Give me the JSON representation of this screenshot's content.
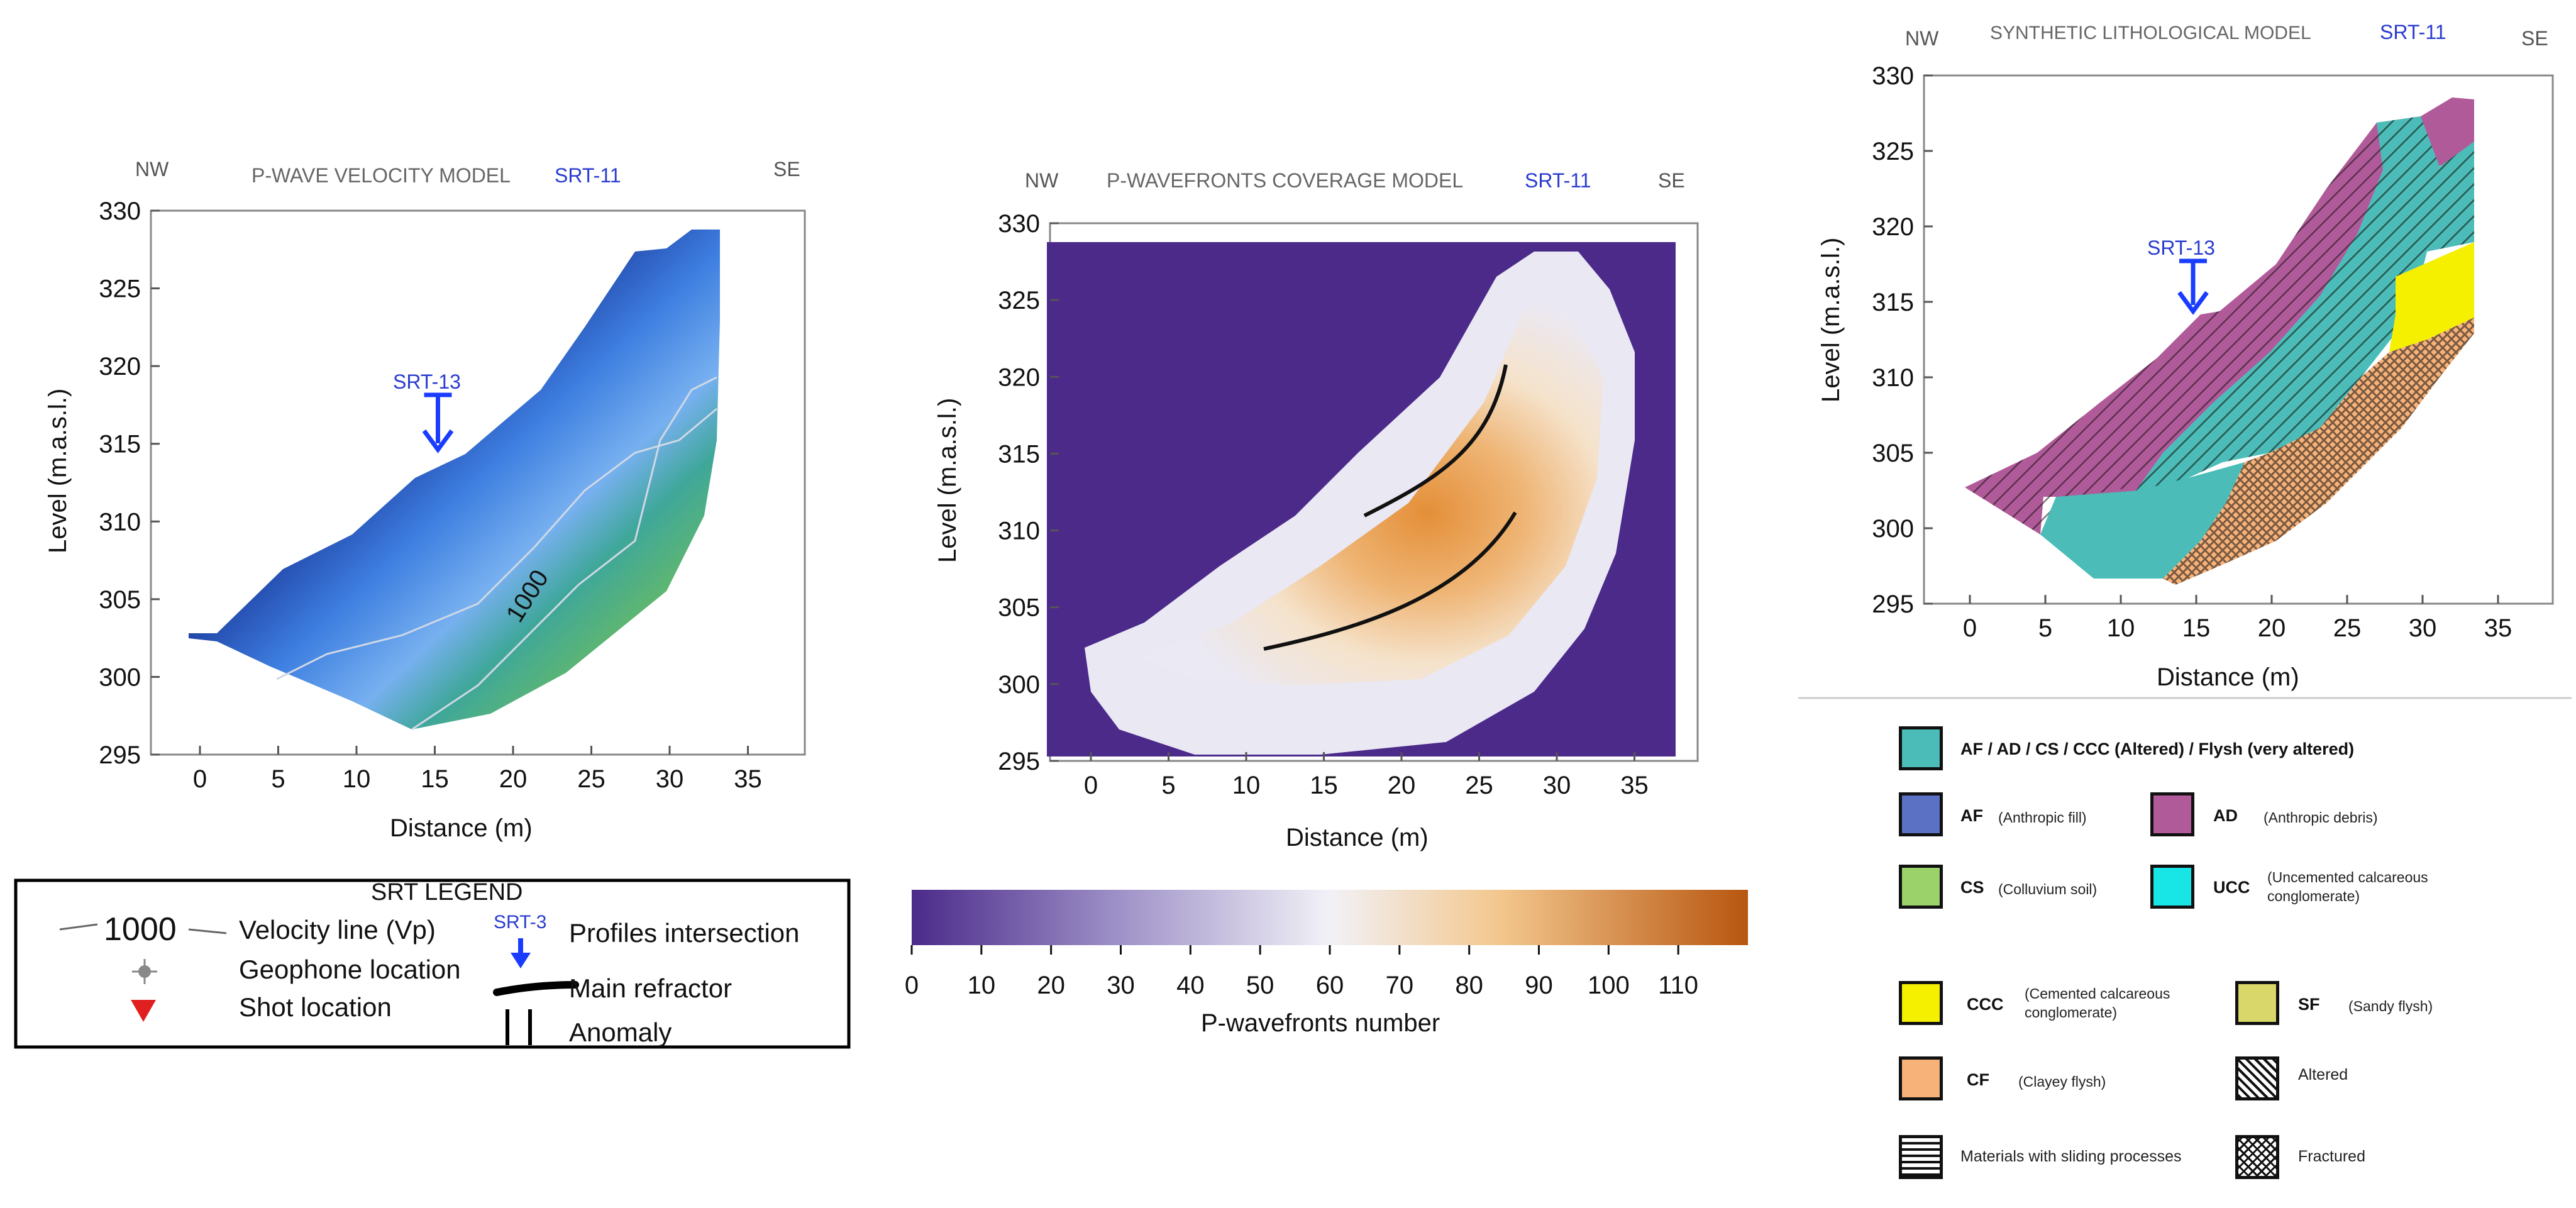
{
  "vp_model": {
    "title": "P-WAVE VELOCITY MODEL",
    "profile": "SRT-11",
    "left_dir": "NW",
    "right_dir": "SE",
    "intersection_label": "SRT-13",
    "contour_label": "1000",
    "ylabel": "Level (m.a.s.l.)",
    "xlabel": "Distance (m)",
    "x_ticks": [
      "0",
      "5",
      "10",
      "15",
      "20",
      "25",
      "30",
      "35"
    ],
    "y_ticks": [
      "330",
      "325",
      "320",
      "315",
      "310",
      "305",
      "300",
      "295"
    ],
    "intersection_x": 15,
    "colors": {
      "low": "#0a1a6e",
      "mid": "#4f8fe8",
      "high": "#a8d24a",
      "contour": "#cfd8e6"
    }
  },
  "coverage_model": {
    "title": "P-WAVEFRONTS COVERAGE MODEL",
    "profile": "SRT-11",
    "left_dir": "NW",
    "right_dir": "SE",
    "ylabel": "Level (m.a.s.l.)",
    "xlabel": "Distance (m)",
    "x_ticks": [
      "0",
      "5",
      "10",
      "15",
      "20",
      "25",
      "30",
      "35"
    ],
    "y_ticks": [
      "330",
      "325",
      "320",
      "315",
      "310",
      "305",
      "300",
      "295"
    ],
    "colorbar": {
      "ticks": [
        "0",
        "10",
        "20",
        "30",
        "40",
        "50",
        "60",
        "70",
        "80",
        "90",
        "100",
        "110"
      ],
      "label": "P-wavefronts number",
      "min": 0,
      "max": 120
    },
    "colors": {
      "background": "#4b2a8a",
      "white": "#f4f3f8",
      "orange": "#e8953a"
    }
  },
  "litho_model": {
    "title": "SYNTHETIC LITHOLOGICAL MODEL",
    "profile": "SRT-11",
    "left_dir": "NW",
    "right_dir": "SE",
    "intersection_label": "SRT-13",
    "ylabel": "Level (m.a.s.l.)",
    "xlabel": "Distance (m)",
    "x_ticks": [
      "0",
      "5",
      "10",
      "15",
      "20",
      "25",
      "30",
      "35"
    ],
    "y_ticks": [
      "330",
      "325",
      "320",
      "315",
      "310",
      "305",
      "300",
      "295"
    ],
    "intersection_x": 15
  },
  "srt_legend": {
    "title": "SRT LEGEND",
    "velocity_value": "1000",
    "velocity_label": "Velocity line (Vp)",
    "geophone_label": "Geophone location",
    "shot_label": "Shot location",
    "intersection_tag": "SRT-3",
    "intersection_label": "Profiles intersection",
    "refractor_label": "Main refractor",
    "anomaly_label": "Anomaly"
  },
  "litho_legend": {
    "main_label": "AF / AD / CS / CCC (Altered) / Flysh (very altered)",
    "items": [
      {
        "code": "AF",
        "desc": "(Anthropic fill)",
        "color": "#5b72c4"
      },
      {
        "code": "AD",
        "desc": "(Anthropic debris)",
        "color": "#b15a9a"
      },
      {
        "code": "CS",
        "desc": "(Colluvium soil)",
        "color": "#9bd36a"
      },
      {
        "code": "UCC",
        "desc": "(Uncemented calcareous",
        "desc2": "conglomerate)",
        "color": "#18e6e6"
      },
      {
        "code": "CCC",
        "desc": "(Cemented calcareous",
        "desc2": "conglomerate)",
        "color": "#f5f000"
      },
      {
        "code": "SF",
        "desc": "(Sandy flysh)",
        "color": "#d9d66a"
      },
      {
        "code": "CF",
        "desc": "(Clayey flysh)",
        "color": "#f7b27a"
      }
    ],
    "altered_label": "Altered",
    "sliding_label": "Materials with sliding processes",
    "fractured_label": "Fractured",
    "teal": "#4bbcb7"
  },
  "chart_data": [
    {
      "type": "heatmap",
      "title": "P-WAVE VELOCITY MODEL SRT-11",
      "xlabel": "Distance (m)",
      "ylabel": "Level (m.a.s.l.)",
      "xlim": [
        -3,
        39
      ],
      "ylim": [
        295,
        330
      ],
      "annotations": [
        "NW",
        "SE",
        "SRT-13",
        "1000"
      ]
    },
    {
      "type": "heatmap",
      "title": "P-WAVEFRONTS COVERAGE MODEL SRT-11",
      "xlabel": "Distance (m)",
      "ylabel": "Level (m.a.s.l.)",
      "xlim": [
        -3,
        38
      ],
      "ylim": [
        295,
        330
      ],
      "colorbar_range": [
        0,
        120
      ],
      "colorbar_label": "P-wavefronts number"
    },
    {
      "type": "area",
      "title": "SYNTHETIC LITHOLOGICAL MODEL SRT-11",
      "xlabel": "Distance (m)",
      "ylabel": "Level (m.a.s.l.)",
      "xlim": [
        -3,
        38
      ],
      "ylim": [
        295,
        330
      ],
      "annotations": [
        "NW",
        "SE",
        "SRT-13"
      ]
    }
  ]
}
